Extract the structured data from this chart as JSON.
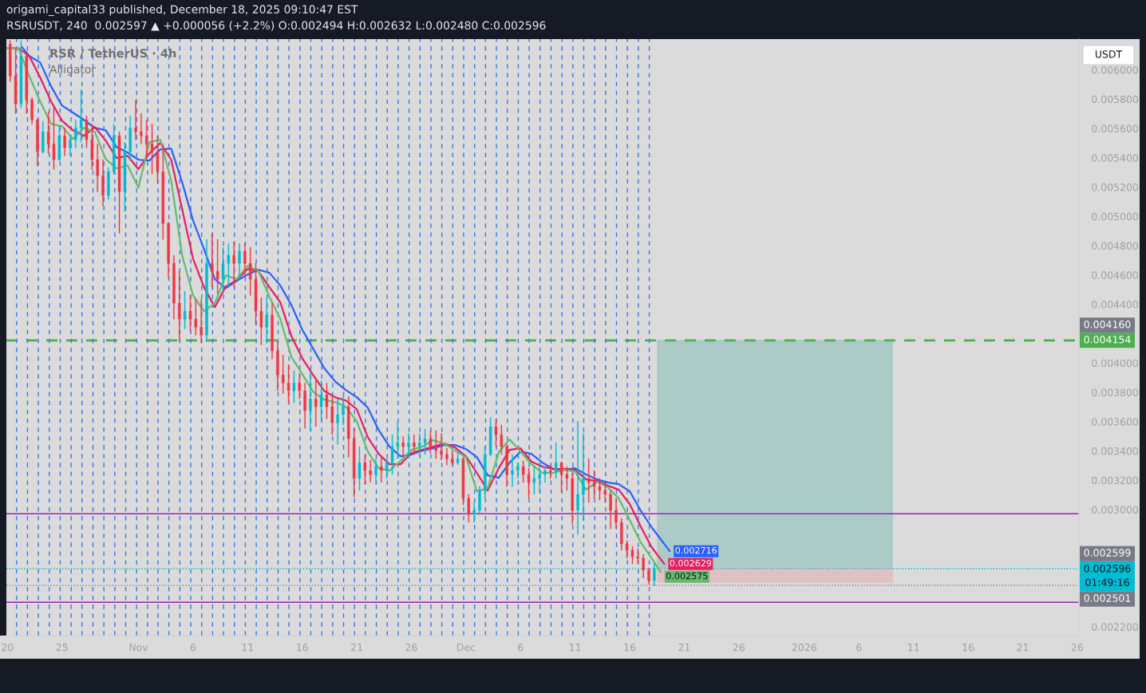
{
  "chart_data": {
    "type": "candlestick",
    "title": "origami_capital33 published, December 18, 2025 09:10:47 EST",
    "subtitle": "RSRUSDT, 240  0.002597 ▲ +0.000056 (+2.2%) O:0.002494 H:0.002632 L:0.002480 C:0.002596",
    "ylabel": "USDT",
    "annotations": [
      "RSR / TetherUS · 4h",
      "Alligator",
      {
        "text": "0.004160",
        "x": "2026-01-26T03:40",
        "y": 0.00416
      },
      {
        "text": "0.002599",
        "x": "2026-01-26T03:40",
        "y": 0.002599
      },
      {
        "text": "0.002501",
        "x": "2026-01-26T03:40",
        "y": 0.002501
      }
    ],
    "x": [
      "2025-10-20T06:00",
      "2025-10-20T18:00",
      "2025-10-21T06:00",
      "2025-10-21T18:00",
      "2025-10-22T06:00",
      "2025-10-22T18:00",
      "2025-10-23T06:00",
      "2025-10-23T18:00",
      "2025-10-24T06:00",
      "2025-10-24T18:00",
      "2025-10-25T06:00",
      "2025-10-25T18:00",
      "2025-10-26T06:00",
      "2025-10-26T18:00",
      "2025-10-27T06:00",
      "2025-10-27T18:00",
      "2025-10-28T06:00",
      "2025-10-28T18:00",
      "2025-10-29T06:00",
      "2025-10-29T18:00",
      "2025-10-30T06:00",
      "2025-10-30T18:00",
      "2025-10-31T06:00",
      "2025-10-31T18:00",
      "2025-11-01T06:00",
      "2025-11-01T18:00",
      "2025-11-02T06:00",
      "2025-11-02T18:00",
      "2025-11-03T06:00",
      "2025-11-03T18:00",
      "2025-11-04T06:00",
      "2025-11-04T18:00",
      "2025-11-05T06:00",
      "2025-11-05T18:00",
      "2025-11-06T06:00",
      "2025-11-06T18:00",
      "2025-11-07T06:00",
      "2025-11-07T18:00",
      "2025-11-08T06:00",
      "2025-11-08T18:00",
      "2025-11-09T06:00",
      "2025-11-09T18:00",
      "2025-11-10T06:00",
      "2025-11-10T18:00",
      "2025-11-11T06:00",
      "2025-11-11T18:00",
      "2025-11-12T06:00",
      "2025-11-12T18:00",
      "2025-11-13T06:00",
      "2025-11-13T18:00",
      "2025-11-14T06:00",
      "2025-11-14T18:00",
      "2025-11-15T06:00",
      "2025-11-15T18:00",
      "2025-11-16T06:00",
      "2025-11-16T18:00",
      "2025-11-17T06:00",
      "2025-11-17T18:00",
      "2025-11-18T06:00",
      "2025-11-18T18:00",
      "2025-11-19T06:00",
      "2025-11-19T18:00",
      "2025-11-20T06:00",
      "2025-11-20T18:00",
      "2025-11-21T06:00",
      "2025-11-21T18:00",
      "2025-11-22T06:00",
      "2025-11-22T18:00",
      "2025-11-23T06:00",
      "2025-11-23T18:00",
      "2025-11-24T06:00",
      "2025-11-24T18:00",
      "2025-11-25T06:00",
      "2025-11-25T18:00",
      "2025-11-26T06:00",
      "2025-11-26T18:00",
      "2025-11-27T06:00",
      "2025-11-27T18:00",
      "2025-11-28T06:00",
      "2025-11-28T18:00",
      "2025-11-29T06:00",
      "2025-11-29T18:00",
      "2025-11-30T06:00",
      "2025-11-30T18:00",
      "2025-12-01T06:00",
      "2025-12-01T18:00",
      "2025-12-02T06:00",
      "2025-12-02T18:00",
      "2025-12-03T06:00",
      "2025-12-03T18:00",
      "2025-12-04T06:00",
      "2025-12-04T18:00",
      "2025-12-05T06:00",
      "2025-12-05T18:00",
      "2025-12-06T06:00",
      "2025-12-06T18:00",
      "2025-12-07T06:00",
      "2025-12-07T18:00",
      "2025-12-08T06:00",
      "2025-12-08T18:00",
      "2025-12-09T06:00",
      "2025-12-09T18:00",
      "2025-12-10T06:00",
      "2025-12-10T18:00",
      "2025-12-11T06:00",
      "2025-12-11T18:00",
      "2025-12-12T06:00",
      "2025-12-12T18:00",
      "2025-12-13T06:00",
      "2025-12-13T18:00",
      "2025-12-14T06:00",
      "2025-12-14T18:00",
      "2025-12-15T06:00",
      "2025-12-15T18:00",
      "2025-12-16T06:00",
      "2025-12-16T18:00",
      "2025-12-17T06:00",
      "2025-12-17T18:00",
      "2025-12-18T06:00"
    ],
    "ohlc": [
      [
        0.006175,
        0.006202,
        0.00592,
        0.005958
      ],
      [
        0.005958,
        0.006148,
        0.005702,
        0.005767
      ],
      [
        0.005767,
        0.006202,
        0.00574,
        0.006094
      ],
      [
        0.006094,
        0.0061,
        0.005702,
        0.005795
      ],
      [
        0.005795,
        0.005811,
        0.005631,
        0.005659
      ],
      [
        0.005659,
        0.005665,
        0.005343,
        0.005441
      ],
      [
        0.005441,
        0.005648,
        0.00543,
        0.005577
      ],
      [
        0.005577,
        0.005713,
        0.00543,
        0.005495
      ],
      [
        0.005495,
        0.005756,
        0.005321,
        0.005387
      ],
      [
        0.005387,
        0.005615,
        0.00538,
        0.00555
      ],
      [
        0.00555,
        0.005604,
        0.005414,
        0.005468
      ],
      [
        0.005468,
        0.00555,
        0.005414,
        0.005523
      ],
      [
        0.005523,
        0.005659,
        0.005468,
        0.005604
      ],
      [
        0.005604,
        0.005865,
        0.005506,
        0.005659
      ],
      [
        0.005659,
        0.005686,
        0.005468,
        0.005523
      ],
      [
        0.005523,
        0.005631,
        0.005321,
        0.005387
      ],
      [
        0.005387,
        0.005495,
        0.005169,
        0.005278
      ],
      [
        0.005278,
        0.005387,
        0.005071,
        0.005142
      ],
      [
        0.005142,
        0.005332,
        0.005115,
        0.005305
      ],
      [
        0.005305,
        0.005631,
        0.005289,
        0.00555
      ],
      [
        0.00555,
        0.005577,
        0.004886,
        0.005169
      ],
      [
        0.005169,
        0.005506,
        0.005033,
        0.005441
      ],
      [
        0.005441,
        0.005686,
        0.005387,
        0.005604
      ],
      [
        0.005604,
        0.005795,
        0.005523,
        0.005577
      ],
      [
        0.005577,
        0.005702,
        0.005495,
        0.00555
      ],
      [
        0.00555,
        0.005659,
        0.005387,
        0.005495
      ],
      [
        0.005495,
        0.005631,
        0.005289,
        0.005441
      ],
      [
        0.005441,
        0.00555,
        0.005224,
        0.005305
      ],
      [
        0.005305,
        0.005495,
        0.004843,
        0.004952
      ],
      [
        0.004952,
        0.00496,
        0.004582,
        0.00468
      ],
      [
        0.00468,
        0.004734,
        0.004299,
        0.004408
      ],
      [
        0.004408,
        0.004625,
        0.004152,
        0.004299
      ],
      [
        0.004299,
        0.004489,
        0.004234,
        0.004353
      ],
      [
        0.004353,
        0.004462,
        0.004217,
        0.004299
      ],
      [
        0.004299,
        0.004435,
        0.00419,
        0.004245
      ],
      [
        0.004245,
        0.004435,
        0.004136,
        0.00419
      ],
      [
        0.00419,
        0.004843,
        0.004147,
        0.00468
      ],
      [
        0.00468,
        0.004886,
        0.004517,
        0.004625
      ],
      [
        0.004625,
        0.004843,
        0.004473,
        0.004571
      ],
      [
        0.004571,
        0.004789,
        0.004489,
        0.00468
      ],
      [
        0.00468,
        0.004816,
        0.004517,
        0.004734
      ],
      [
        0.004734,
        0.004827,
        0.004517,
        0.00468
      ],
      [
        0.00468,
        0.004816,
        0.004571,
        0.004762
      ],
      [
        0.004762,
        0.004816,
        0.004598,
        0.00468
      ],
      [
        0.00468,
        0.004789,
        0.004462,
        0.004571
      ],
      [
        0.004571,
        0.00468,
        0.004261,
        0.004353
      ],
      [
        0.004353,
        0.004446,
        0.004125,
        0.004245
      ],
      [
        0.004245,
        0.004446,
        0.004136,
        0.004326
      ],
      [
        0.004326,
        0.004408,
        0.004027,
        0.004082
      ],
      [
        0.004082,
        0.004152,
        0.00381,
        0.003918
      ],
      [
        0.003918,
        0.004054,
        0.003793,
        0.003864
      ],
      [
        0.003864,
        0.003989,
        0.003728,
        0.00381
      ],
      [
        0.00381,
        0.003946,
        0.003728,
        0.003864
      ],
      [
        0.003864,
        0.003929,
        0.003755,
        0.00381
      ],
      [
        0.00381,
        0.003864,
        0.003554,
        0.003674
      ],
      [
        0.003674,
        0.003935,
        0.003538,
        0.003755
      ],
      [
        0.003755,
        0.003891,
        0.003565,
        0.003701
      ],
      [
        0.003701,
        0.00388,
        0.003608,
        0.003783
      ],
      [
        0.003783,
        0.003864,
        0.003619,
        0.003701
      ],
      [
        0.003701,
        0.003772,
        0.00351,
        0.003592
      ],
      [
        0.003592,
        0.003755,
        0.003445,
        0.003647
      ],
      [
        0.003647,
        0.003772,
        0.003576,
        0.003701
      ],
      [
        0.003701,
        0.003772,
        0.003358,
        0.003483
      ],
      [
        0.003483,
        0.003554,
        0.003086,
        0.003212
      ],
      [
        0.003212,
        0.003429,
        0.00313,
        0.00332
      ],
      [
        0.00332,
        0.003375,
        0.003174,
        0.003266
      ],
      [
        0.003266,
        0.003337,
        0.003185,
        0.003239
      ],
      [
        0.003239,
        0.003347,
        0.003174,
        0.003293
      ],
      [
        0.003293,
        0.003358,
        0.003185,
        0.003266
      ],
      [
        0.003266,
        0.003347,
        0.003212,
        0.00332
      ],
      [
        0.00332,
        0.00351,
        0.003239,
        0.003429
      ],
      [
        0.003429,
        0.003603,
        0.003347,
        0.003456
      ],
      [
        0.003456,
        0.003499,
        0.003358,
        0.003429
      ],
      [
        0.003429,
        0.003521,
        0.003358,
        0.003456
      ],
      [
        0.003456,
        0.00351,
        0.003375,
        0.003429
      ],
      [
        0.003429,
        0.003521,
        0.003364,
        0.003456
      ],
      [
        0.003456,
        0.003549,
        0.003375,
        0.003483
      ],
      [
        0.003483,
        0.003538,
        0.003385,
        0.003429
      ],
      [
        0.003429,
        0.003538,
        0.003347,
        0.003402
      ],
      [
        0.003402,
        0.003521,
        0.003337,
        0.003375
      ],
      [
        0.003375,
        0.003418,
        0.003304,
        0.003347
      ],
      [
        0.003347,
        0.003402,
        0.003304,
        0.00332
      ],
      [
        0.00332,
        0.003391,
        0.003304,
        0.003347
      ],
      [
        0.003347,
        0.00335,
        0.003032,
        0.003076
      ],
      [
        0.003076,
        0.003103,
        0.002912,
        0.002967
      ],
      [
        0.002967,
        0.003048,
        0.002912,
        0.002994
      ],
      [
        0.002994,
        0.003157,
        0.002978,
        0.00313
      ],
      [
        0.00313,
        0.003429,
        0.003076,
        0.003375
      ],
      [
        0.003375,
        0.00363,
        0.003364,
        0.003565
      ],
      [
        0.003565,
        0.003619,
        0.003429,
        0.00351
      ],
      [
        0.00351,
        0.003576,
        0.003375,
        0.003429
      ],
      [
        0.003429,
        0.003445,
        0.003157,
        0.003239
      ],
      [
        0.003239,
        0.003375,
        0.003157,
        0.003266
      ],
      [
        0.003266,
        0.00332,
        0.003212,
        0.003293
      ],
      [
        0.003293,
        0.003331,
        0.003185,
        0.003239
      ],
      [
        0.003239,
        0.003282,
        0.003076,
        0.003185
      ],
      [
        0.003185,
        0.003293,
        0.003103,
        0.003212
      ],
      [
        0.003212,
        0.00332,
        0.003119,
        0.003239
      ],
      [
        0.003239,
        0.003293,
        0.003185,
        0.003266
      ],
      [
        0.003266,
        0.003304,
        0.003212,
        0.003255
      ],
      [
        0.003255,
        0.003456,
        0.003212,
        0.00332
      ],
      [
        0.00332,
        0.003325,
        0.003119,
        0.003239
      ],
      [
        0.003239,
        0.003293,
        0.00313,
        0.003212
      ],
      [
        0.003212,
        0.00325,
        0.002901,
        0.002994
      ],
      [
        0.002994,
        0.003603,
        0.002831,
        0.003103
      ],
      [
        0.003103,
        0.003521,
        0.002923,
        0.003212
      ],
      [
        0.003212,
        0.003347,
        0.003048,
        0.003185
      ],
      [
        0.003185,
        0.003266,
        0.003076,
        0.003157
      ],
      [
        0.003157,
        0.003212,
        0.003065,
        0.00313
      ],
      [
        0.00313,
        0.003185,
        0.003048,
        0.003103
      ],
      [
        0.003103,
        0.00313,
        0.002869,
        0.002994
      ],
      [
        0.002994,
        0.003076,
        0.002869,
        0.002912
      ],
      [
        0.002912,
        0.00294,
        0.002722,
        0.002766
      ],
      [
        0.002766,
        0.002787,
        0.002668,
        0.002722
      ],
      [
        0.002722,
        0.002749,
        0.00263,
        0.002678
      ],
      [
        0.002678,
        0.002733,
        0.00263,
        0.002668
      ],
      [
        0.002668,
        0.002695,
        0.002532,
        0.002586
      ],
      [
        0.002586,
        0.002603,
        0.002488,
        0.002515
      ],
      [
        0.002515,
        0.002632,
        0.00248,
        0.002596
      ]
    ],
    "colors": [
      "#f23645",
      "#f23645",
      "#00bcd4",
      "#f23645",
      "#f23645",
      "#f23645",
      "#00bcd4",
      "#f23645",
      "#f23645",
      "#00bcd4",
      "#f23645",
      "#00bcd4",
      "#00bcd4",
      "#00bcd4",
      "#f23645",
      "#f23645",
      "#f23645",
      "#f23645",
      "#00bcd4",
      "#00bcd4",
      "#f23645",
      "#00bcd4",
      "#00bcd4",
      "#f23645",
      "#f23645",
      "#f23645",
      "#f23645",
      "#f23645",
      "#f23645",
      "#f23645",
      "#f23645",
      "#f23645",
      "#00bcd4",
      "#f23645",
      "#f23645",
      "#f23645",
      "#00bcd4",
      "#f23645",
      "#f23645",
      "#00bcd4",
      "#00bcd4",
      "#f23645",
      "#00bcd4",
      "#f23645",
      "#f23645",
      "#f23645",
      "#f23645",
      "#00bcd4",
      "#f23645",
      "#f23645",
      "#f23645",
      "#f23645",
      "#00bcd4",
      "#f23645",
      "#f23645",
      "#00bcd4",
      "#f23645",
      "#00bcd4",
      "#f23645",
      "#f23645",
      "#00bcd4",
      "#00bcd4",
      "#f23645",
      "#f23645",
      "#00bcd4",
      "#f23645",
      "#f23645",
      "#00bcd4",
      "#f23645",
      "#00bcd4",
      "#00bcd4",
      "#00bcd4",
      "#f23645",
      "#00bcd4",
      "#f23645",
      "#00bcd4",
      "#00bcd4",
      "#f23645",
      "#f23645",
      "#f23645",
      "#f23645",
      "#f23645",
      "#00bcd4",
      "#f23645",
      "#f23645",
      "#00bcd4",
      "#00bcd4",
      "#00bcd4",
      "#00bcd4",
      "#f23645",
      "#f23645",
      "#f23645",
      "#00bcd4",
      "#00bcd4",
      "#f23645",
      "#f23645",
      "#00bcd4",
      "#00bcd4",
      "#00bcd4",
      "#f23645",
      "#00bcd4",
      "#f23645",
      "#f23645",
      "#f23645",
      "#00bcd4",
      "#00bcd4",
      "#f23645",
      "#f23645",
      "#f23645",
      "#f23645",
      "#f23645",
      "#f23645",
      "#f23645",
      "#f23645",
      "#f23645",
      "#f23645",
      "#f23645",
      "#f23645",
      "#00bcd4"
    ],
    "series": [
      {
        "type": "line",
        "color": "#adcbc6",
        "x": [
          "2025-12-18T12:00",
          "2026-01-09T03:00"
        ],
        "values": [
          0.004154,
          0.004154
        ],
        "lower": [
          0.002596,
          0.002596
        ],
        "upper": [
          0.004154,
          0.004154
        ]
      },
      {
        "type": "line",
        "color": "#dfc1c4",
        "x": [
          "2025-12-18T12:00",
          "2026-01-09T03:00"
        ],
        "values": [
          0.002596,
          0.002596
        ],
        "lower": [
          0.002501,
          0.002501
        ],
        "upper": [
          0.002596,
          0.002596
        ]
      },
      {
        "type": "line",
        "color": "#2962ff",
        "x": [
          "2025-10-21T07:00",
          "2025-10-22",
          "2025-10-23",
          "2025-10-24",
          "2025-10-25",
          "2025-10-26",
          "2025-10-27",
          "2025-10-28",
          "2025-10-29",
          "2025-10-30",
          "2025-10-31",
          "2025-11-01",
          "2025-11-02",
          "2025-11-03",
          "2025-11-04",
          "2025-11-05",
          "2025-11-06",
          "2025-11-07",
          "2025-11-08",
          "2025-11-09",
          "2025-11-10",
          "2025-11-11",
          "2025-11-12",
          "2025-11-13",
          "2025-11-14",
          "2025-11-15",
          "2025-11-16",
          "2025-11-17",
          "2025-11-18",
          "2025-11-19",
          "2025-11-20",
          "2025-11-21",
          "2025-11-22",
          "2025-11-23",
          "2025-11-24",
          "2025-11-25",
          "2025-11-26",
          "2025-11-27",
          "2025-11-28",
          "2025-11-29",
          "2025-11-30",
          "2025-12-01",
          "2025-12-02",
          "2025-12-03",
          "2025-12-04",
          "2025-12-05",
          "2025-12-06",
          "2025-12-07",
          "2025-12-08",
          "2025-12-09",
          "2025-12-10",
          "2025-12-11",
          "2025-12-12",
          "2025-12-13",
          "2025-12-14",
          "2025-12-15",
          "2025-12-16",
          "2025-12-17",
          "2025-12-18",
          "2025-12-19T16:00"
        ],
        "values": [
          0.006159,
          0.006094,
          0.00605,
          0.005887,
          0.005756,
          0.005708,
          0.005659,
          0.005604,
          0.005588,
          0.005474,
          0.005436,
          0.005387,
          0.005381,
          0.005457,
          0.005463,
          0.005234,
          0.004973,
          0.004778,
          0.004571,
          0.004511,
          0.00456,
          0.004604,
          0.004636,
          0.004615,
          0.004528,
          0.004397,
          0.004228,
          0.004098,
          0.003967,
          0.003875,
          0.003815,
          0.003766,
          0.003696,
          0.003543,
          0.003429,
          0.003364,
          0.003375,
          0.003402,
          0.003418,
          0.00344,
          0.00344,
          0.003413,
          0.003358,
          0.003233,
          0.003217,
          0.00332,
          0.003396,
          0.00338,
          0.00332,
          0.003277,
          0.003271,
          0.003282,
          0.003239,
          0.003206,
          0.003184,
          0.003173,
          0.003125,
          0.002994,
          0.00288,
          0.002716
        ],
        "value_labels": [
          null,
          null,
          null,
          null,
          null,
          null,
          null,
          null,
          null,
          null,
          null,
          null,
          null,
          null,
          null,
          null,
          null,
          null,
          null,
          null,
          null,
          null,
          null,
          null,
          null,
          null,
          null,
          null,
          null,
          null,
          null,
          null,
          null,
          null,
          null,
          null,
          null,
          null,
          null,
          null,
          null,
          null,
          null,
          null,
          null,
          null,
          null,
          null,
          null,
          null,
          null,
          null,
          null,
          null,
          null,
          null,
          null,
          null,
          null,
          "0.002716"
        ]
      },
      {
        "type": "line",
        "color": "#e91e63",
        "x": [
          "2025-10-20",
          "2025-10-21",
          "2025-10-22",
          "2025-10-23",
          "2025-10-24",
          "2025-10-25",
          "2025-10-26",
          "2025-10-27",
          "2025-10-28",
          "2025-10-29",
          "2025-10-30",
          "2025-10-31",
          "2025-11-01",
          "2025-11-02",
          "2025-11-03",
          "2025-11-04",
          "2025-11-05",
          "2025-11-06",
          "2025-11-07",
          "2025-11-08",
          "2025-11-09",
          "2025-11-10",
          "2025-11-11",
          "2025-11-12",
          "2025-11-13",
          "2025-11-14",
          "2025-11-15",
          "2025-11-16",
          "2025-11-17",
          "2025-11-18",
          "2025-11-19",
          "2025-11-20",
          "2025-11-21",
          "2025-11-22",
          "2025-11-23",
          "2025-11-24",
          "2025-11-25",
          "2025-11-26",
          "2025-11-27",
          "2025-11-28",
          "2025-11-29",
          "2025-11-30",
          "2025-12-01",
          "2025-12-02",
          "2025-12-03",
          "2025-12-04",
          "2025-12-05",
          "2025-12-06",
          "2025-12-07",
          "2025-12-08",
          "2025-12-09",
          "2025-12-10",
          "2025-12-11",
          "2025-12-12",
          "2025-12-13",
          "2025-12-14",
          "2025-12-15",
          "2025-12-16",
          "2025-12-17",
          "2025-12-18",
          "2025-12-19T04:00"
        ],
        "values": [
          0.006148,
          0.006148,
          0.006094,
          0.005947,
          0.005784,
          0.005653,
          0.005588,
          0.00555,
          0.00561,
          0.005517,
          0.005398,
          0.005414,
          0.005322,
          0.00543,
          0.005501,
          0.005387,
          0.00505,
          0.004712,
          0.004517,
          0.004381,
          0.004522,
          0.004566,
          0.004642,
          0.004625,
          0.004517,
          0.004413,
          0.004185,
          0.004033,
          0.003918,
          0.00381,
          0.003766,
          0.003744,
          0.003685,
          0.003494,
          0.00338,
          0.003309,
          0.003309,
          0.003386,
          0.003407,
          0.003429,
          0.003451,
          0.003424,
          0.003364,
          0.00325,
          0.00313,
          0.003282,
          0.003407,
          0.003418,
          0.003326,
          0.003293,
          0.003277,
          0.003277,
          0.003271,
          0.003206,
          0.003195,
          0.003163,
          0.003135,
          0.003038,
          0.002885,
          0.002744,
          0.002629
        ],
        "value_labels": [
          null,
          null,
          null,
          null,
          null,
          null,
          null,
          null,
          null,
          null,
          null,
          null,
          null,
          null,
          null,
          null,
          null,
          null,
          null,
          null,
          null,
          null,
          null,
          null,
          null,
          null,
          null,
          null,
          null,
          null,
          null,
          null,
          null,
          null,
          null,
          null,
          null,
          null,
          null,
          null,
          null,
          null,
          null,
          null,
          null,
          null,
          null,
          null,
          null,
          null,
          null,
          null,
          null,
          null,
          null,
          null,
          null,
          null,
          null,
          null,
          "0.002629"
        ]
      },
      {
        "type": "line",
        "color": "#66bb6a",
        "x": [
          "2025-10-20",
          "2025-10-21",
          "2025-10-22",
          "2025-10-23",
          "2025-10-24",
          "2025-10-25",
          "2025-10-26",
          "2025-10-27",
          "2025-10-28",
          "2025-10-29",
          "2025-10-30",
          "2025-10-31",
          "2025-11-01",
          "2025-11-02",
          "2025-11-03",
          "2025-11-04",
          "2025-11-05",
          "2025-11-06",
          "2025-11-07",
          "2025-11-08",
          "2025-11-09",
          "2025-11-10",
          "2025-11-11",
          "2025-11-12",
          "2025-11-13",
          "2025-11-14",
          "2025-11-15",
          "2025-11-16",
          "2025-11-17",
          "2025-11-18",
          "2025-11-19",
          "2025-11-20",
          "2025-11-21",
          "2025-11-22",
          "2025-11-23",
          "2025-11-24",
          "2025-11-25",
          "2025-11-26",
          "2025-11-27",
          "2025-11-28",
          "2025-11-29",
          "2025-11-30",
          "2025-12-01",
          "2025-12-02",
          "2025-12-03",
          "2025-12-04",
          "2025-12-05",
          "2025-12-06",
          "2025-12-07",
          "2025-12-08",
          "2025-12-09",
          "2025-12-10",
          "2025-12-11",
          "2025-12-12",
          "2025-12-13",
          "2025-12-14",
          "2025-12-15",
          "2025-12-16",
          "2025-12-17",
          "2025-12-18",
          "2025-12-18T20:00"
        ],
        "values": [
          0.006148,
          0.006148,
          0.005958,
          0.005784,
          0.005631,
          0.005615,
          0.005528,
          0.005604,
          0.005577,
          0.005392,
          0.005327,
          0.005349,
          0.005196,
          0.005506,
          0.005523,
          0.005245,
          0.004734,
          0.004462,
          0.004354,
          0.004408,
          0.004598,
          0.004571,
          0.004664,
          0.004625,
          0.004451,
          0.004299,
          0.004044,
          0.003924,
          0.003804,
          0.00375,
          0.003734,
          0.003701,
          0.003603,
          0.003396,
          0.003282,
          0.003266,
          0.003331,
          0.003407,
          0.003429,
          0.003473,
          0.003451,
          0.003402,
          0.003358,
          0.003125,
          0.003146,
          0.003391,
          0.003478,
          0.003396,
          0.003309,
          0.00325,
          0.00325,
          0.003271,
          0.00326,
          0.003135,
          0.00319,
          0.003152,
          0.003076,
          0.002929,
          0.002777,
          0.002668,
          0.002575
        ],
        "value_labels": [
          null,
          null,
          null,
          null,
          null,
          null,
          null,
          null,
          null,
          null,
          null,
          null,
          null,
          null,
          null,
          null,
          null,
          null,
          null,
          null,
          null,
          null,
          null,
          null,
          null,
          null,
          null,
          null,
          null,
          null,
          null,
          null,
          null,
          null,
          null,
          null,
          null,
          null,
          null,
          null,
          null,
          null,
          null,
          null,
          null,
          null,
          null,
          null,
          null,
          null,
          null,
          null,
          null,
          null,
          null,
          null,
          null,
          null,
          null,
          null,
          "0.002575"
        ]
      }
    ],
    "ref_lines": [
      {
        "axis": "y",
        "value": 0.004154,
        "label": "0.004154",
        "color": "#4caf50",
        "line_style": "dashed"
      },
      {
        "axis": "y",
        "value": 0.002971,
        "color": "#9c27b0",
        "line_style": "solid"
      },
      {
        "axis": "y",
        "value": 0.002596,
        "label": "0.002596\n01:49:16",
        "color": "#00bcd4",
        "line_style": "dotted"
      },
      {
        "axis": "y",
        "value": 0.002482,
        "color": "#787b86",
        "line_style": "dotted"
      },
      {
        "axis": "y",
        "value": 0.002367,
        "color": "#9c27b0",
        "line_style": "solid"
      },
      {
        "axis": "x",
        "value": "2025-10-20T20:00",
        "color": "#3b78e7",
        "line_style": "dashed"
      },
      {
        "axis": "x",
        "value": "2025-10-21T20:00",
        "color": "#3b78e7",
        "line_style": "dashed"
      },
      {
        "axis": "x",
        "value": "2025-10-22T20:00",
        "color": "#3b78e7",
        "line_style": "dashed"
      },
      {
        "axis": "x",
        "value": "2025-10-23T20:00",
        "color": "#3b78e7",
        "line_style": "dashed"
      },
      {
        "axis": "x",
        "value": "2025-10-24T20:00",
        "color": "#3b78e7",
        "line_style": "dashed"
      },
      {
        "axis": "x",
        "value": "2025-10-25T20:00",
        "color": "#3b78e7",
        "line_style": "dashed"
      },
      {
        "axis": "x",
        "value": "2025-10-26T20:00",
        "color": "#3b78e7",
        "line_style": "dashed"
      },
      {
        "axis": "x",
        "value": "2025-10-27T20:00",
        "color": "#3b78e7",
        "line_style": "dashed"
      },
      {
        "axis": "x",
        "value": "2025-10-28T20:00",
        "color": "#3b78e7",
        "line_style": "dashed"
      },
      {
        "axis": "x",
        "value": "2025-10-29T20:00",
        "color": "#3b78e7",
        "line_style": "dashed"
      },
      {
        "axis": "x",
        "value": "2025-10-30T20:00",
        "color": "#3b78e7",
        "line_style": "dashed"
      },
      {
        "axis": "x",
        "value": "2025-10-31T20:00",
        "color": "#3b78e7",
        "line_style": "dashed"
      },
      {
        "axis": "x",
        "value": "2025-11-01T20:00",
        "color": "#3b78e7",
        "line_style": "dashed"
      },
      {
        "axis": "x",
        "value": "2025-11-02T19:00",
        "color": "#3b78e7",
        "line_style": "dashed"
      },
      {
        "axis": "x",
        "value": "2025-11-03T19:00",
        "color": "#3b78e7",
        "line_style": "dashed"
      },
      {
        "axis": "x",
        "value": "2025-11-04T19:00",
        "color": "#3b78e7",
        "line_style": "dashed"
      },
      {
        "axis": "x",
        "value": "2025-11-05T19:00",
        "color": "#3b78e7",
        "line_style": "dashed"
      },
      {
        "axis": "x",
        "value": "2025-11-06T19:00",
        "color": "#3b78e7",
        "line_style": "dashed"
      },
      {
        "axis": "x",
        "value": "2025-11-07T19:00",
        "color": "#3b78e7",
        "line_style": "dashed"
      },
      {
        "axis": "x",
        "value": "2025-11-08T19:00",
        "color": "#3b78e7",
        "line_style": "dashed"
      },
      {
        "axis": "x",
        "value": "2025-11-09T19:00",
        "color": "#3b78e7",
        "line_style": "dashed"
      },
      {
        "axis": "x",
        "value": "2025-11-10T19:00",
        "color": "#3b78e7",
        "line_style": "dashed"
      },
      {
        "axis": "x",
        "value": "2025-11-11T19:00",
        "color": "#3b78e7",
        "line_style": "dashed"
      },
      {
        "axis": "x",
        "value": "2025-11-12T19:00",
        "color": "#3b78e7",
        "line_style": "dashed"
      },
      {
        "axis": "x",
        "value": "2025-11-13T19:00",
        "color": "#3b78e7",
        "line_style": "dashed"
      },
      {
        "axis": "x",
        "value": "2025-11-14T19:00",
        "color": "#3b78e7",
        "line_style": "dashed"
      },
      {
        "axis": "x",
        "value": "2025-11-15T19:00",
        "color": "#3b78e7",
        "line_style": "dashed"
      },
      {
        "axis": "x",
        "value": "2025-11-16T19:00",
        "color": "#3b78e7",
        "line_style": "dashed"
      },
      {
        "axis": "x",
        "value": "2025-11-17T19:00",
        "color": "#3b78e7",
        "line_style": "dashed"
      },
      {
        "axis": "x",
        "value": "2025-11-18T19:00",
        "color": "#3b78e7",
        "line_style": "dashed"
      },
      {
        "axis": "x",
        "value": "2025-11-19T19:00",
        "color": "#3b78e7",
        "line_style": "dashed"
      },
      {
        "axis": "x",
        "value": "2025-11-20T19:00",
        "color": "#3b78e7",
        "line_style": "dashed"
      },
      {
        "axis": "x",
        "value": "2025-11-21T19:00",
        "color": "#3b78e7",
        "line_style": "dashed"
      },
      {
        "axis": "x",
        "value": "2025-11-22T19:00",
        "color": "#3b78e7",
        "line_style": "dashed"
      },
      {
        "axis": "x",
        "value": "2025-11-23T19:00",
        "color": "#3b78e7",
        "line_style": "dashed"
      },
      {
        "axis": "x",
        "value": "2025-11-24T19:00",
        "color": "#3b78e7",
        "line_style": "dashed"
      },
      {
        "axis": "x",
        "value": "2025-11-25T19:00",
        "color": "#3b78e7",
        "line_style": "dashed"
      },
      {
        "axis": "x",
        "value": "2025-11-26T19:00",
        "color": "#3b78e7",
        "line_style": "dashed"
      },
      {
        "axis": "x",
        "value": "2025-11-27T19:00",
        "color": "#3b78e7",
        "line_style": "dashed"
      },
      {
        "axis": "x",
        "value": "2025-11-28T19:00",
        "color": "#3b78e7",
        "line_style": "dashed"
      },
      {
        "axis": "x",
        "value": "2025-11-29T19:00",
        "color": "#3b78e7",
        "line_style": "dashed"
      },
      {
        "axis": "x",
        "value": "2025-11-30T19:00",
        "color": "#3b78e7",
        "line_style": "dashed"
      },
      {
        "axis": "x",
        "value": "2025-12-01T19:00",
        "color": "#3b78e7",
        "line_style": "dashed"
      },
      {
        "axis": "x",
        "value": "2025-12-02T19:00",
        "color": "#3b78e7",
        "line_style": "dashed"
      },
      {
        "axis": "x",
        "value": "2025-12-03T19:00",
        "color": "#3b78e7",
        "line_style": "dashed"
      },
      {
        "axis": "x",
        "value": "2025-12-04T19:00",
        "color": "#3b78e7",
        "line_style": "dashed"
      },
      {
        "axis": "x",
        "value": "2025-12-05T19:00",
        "color": "#3b78e7",
        "line_style": "dashed"
      },
      {
        "axis": "x",
        "value": "2025-12-06T19:00",
        "color": "#3b78e7",
        "line_style": "dashed"
      },
      {
        "axis": "x",
        "value": "2025-12-07T19:00",
        "color": "#3b78e7",
        "line_style": "dashed"
      },
      {
        "axis": "x",
        "value": "2025-12-08T19:00",
        "color": "#3b78e7",
        "line_style": "dashed"
      },
      {
        "axis": "x",
        "value": "2025-12-09T19:00",
        "color": "#3b78e7",
        "line_style": "dashed"
      },
      {
        "axis": "x",
        "value": "2025-12-10T19:00",
        "color": "#3b78e7",
        "line_style": "dashed"
      },
      {
        "axis": "x",
        "value": "2025-12-11T19:00",
        "color": "#3b78e7",
        "line_style": "dashed"
      },
      {
        "axis": "x",
        "value": "2025-12-12T19:00",
        "color": "#3b78e7",
        "line_style": "dashed"
      },
      {
        "axis": "x",
        "value": "2025-12-13T19:00",
        "color": "#3b78e7",
        "line_style": "dashed"
      },
      {
        "axis": "x",
        "value": "2025-12-14T19:00",
        "color": "#3b78e7",
        "line_style": "dashed"
      },
      {
        "axis": "x",
        "value": "2025-12-15T19:00",
        "color": "#3b78e7",
        "line_style": "dashed"
      },
      {
        "axis": "x",
        "value": "2025-12-16T19:00",
        "color": "#3b78e7",
        "line_style": "dashed"
      },
      {
        "axis": "x",
        "value": "2025-12-17T19:00",
        "color": "#3b78e7",
        "line_style": "dashed"
      }
    ],
    "xlim": [
      "2025-10-19T21:40",
      "2026-01-26T03:40"
    ],
    "xticks": [
      {
        "value": "2025-10-20",
        "label": "20"
      },
      {
        "value": "2025-10-25",
        "label": "25"
      },
      {
        "value": "2025-11-01",
        "label": "Nov"
      },
      {
        "value": "2025-11-06",
        "label": "6"
      },
      {
        "value": "2025-11-11",
        "label": "11"
      },
      {
        "value": "2025-11-16",
        "label": "16"
      },
      {
        "value": "2025-11-21",
        "label": "21"
      },
      {
        "value": "2025-11-26",
        "label": "26"
      },
      {
        "value": "2025-12-01",
        "label": "Dec"
      },
      {
        "value": "2025-12-06",
        "label": "6"
      },
      {
        "value": "2025-12-11",
        "label": "11"
      },
      {
        "value": "2025-12-16",
        "label": "16"
      },
      {
        "value": "2025-12-21",
        "label": "21"
      },
      {
        "value": "2025-12-26",
        "label": "26"
      },
      {
        "value": "2026-01-01",
        "label": "2026"
      },
      {
        "value": "2026-01-06",
        "label": "6"
      },
      {
        "value": "2026-01-11",
        "label": "11"
      },
      {
        "value": "2026-01-16",
        "label": "16"
      },
      {
        "value": "2026-01-21",
        "label": "21"
      },
      {
        "value": "2026-01-26",
        "label": "26"
      }
    ],
    "ylim": [
      0.00214,
      0.00621
    ],
    "yticks": [
      {
        "value": 0.0022,
        "label": "0.002200"
      },
      {
        "value": 0.003,
        "label": "0.003000"
      },
      {
        "value": 0.0032,
        "label": "0.003200"
      },
      {
        "value": 0.0034,
        "label": "0.003400"
      },
      {
        "value": 0.0036,
        "label": "0.003600"
      },
      {
        "value": 0.0038,
        "label": "0.003800"
      },
      {
        "value": 0.004,
        "label": "0.004000"
      },
      {
        "value": 0.0044,
        "label": "0.004400"
      },
      {
        "value": 0.0046,
        "label": "0.004600"
      },
      {
        "value": 0.0048,
        "label": "0.004800"
      },
      {
        "value": 0.005,
        "label": "0.005000"
      },
      {
        "value": 0.0052,
        "label": "0.005200"
      },
      {
        "value": 0.0054,
        "label": "0.005400"
      },
      {
        "value": 0.0056,
        "label": "0.005600"
      },
      {
        "value": 0.0058,
        "label": "0.005800"
      },
      {
        "value": 0.006,
        "label": "0.006000"
      }
    ]
  }
}
